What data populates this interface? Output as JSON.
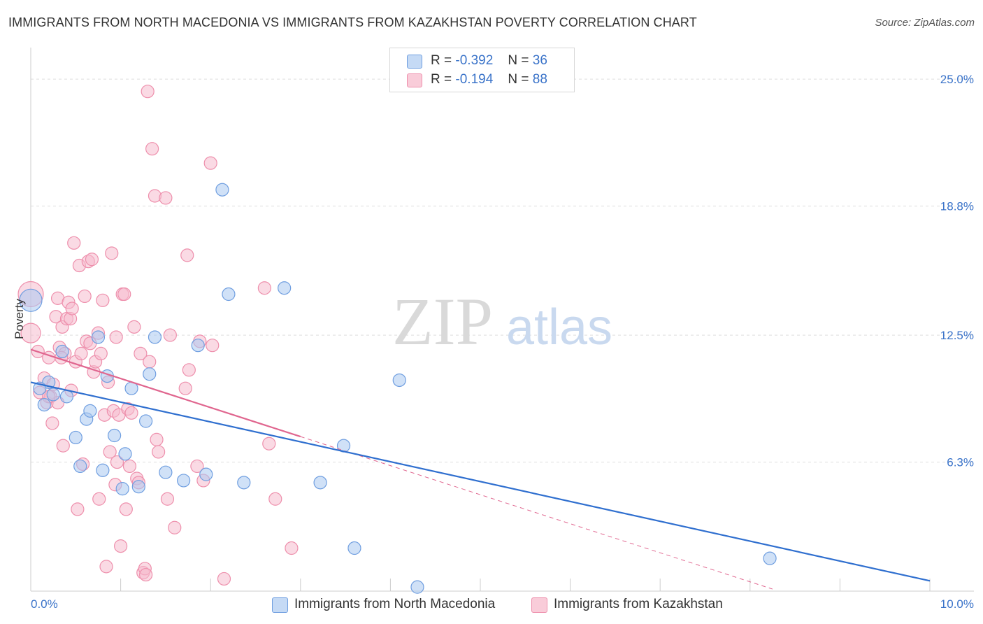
{
  "title": "IMMIGRANTS FROM NORTH MACEDONIA VS IMMIGRANTS FROM KAZAKHSTAN POVERTY CORRELATION CHART",
  "source": "Source: ZipAtlas.com",
  "colors": {
    "blue_fill": "#a9c8f0",
    "blue_stroke": "#6f9ee0",
    "blue_line": "#2f6fcf",
    "pink_fill": "#f6bccd",
    "pink_stroke": "#ee8fac",
    "pink_line": "#e0668f",
    "axis_label": "#3a73c9",
    "grid": "#dddddd"
  },
  "legend": {
    "r_label": "R =",
    "n_label": "N =",
    "series1": {
      "r": "-0.392",
      "n": "36"
    },
    "series2": {
      "r": "-0.194",
      "n": "88"
    }
  },
  "watermark": {
    "zip": "ZIP",
    "atlas": "atlas"
  },
  "chart_data": {
    "type": "scatter",
    "title": "IMMIGRANTS FROM NORTH MACEDONIA VS IMMIGRANTS FROM KAZAKHSTAN POVERTY CORRELATION CHART",
    "xlabel": "",
    "ylabel": "Poverty",
    "xlim": [
      0,
      10
    ],
    "ylim": [
      0,
      26.2
    ],
    "x_tick_labels": [
      "0.0%",
      "10.0%"
    ],
    "y_ticks": [
      6.3,
      12.5,
      18.8,
      25.0
    ],
    "y_tick_labels": [
      "6.3%",
      "12.5%",
      "18.8%",
      "25.0%"
    ],
    "series": [
      {
        "name": "Immigrants from North Macedonia",
        "color": "blue",
        "trend": {
          "x": [
            0,
            10
          ],
          "y": [
            10.2,
            0.5
          ],
          "solid_to": 10
        },
        "points": [
          [
            0.0,
            14.2,
            16
          ],
          [
            0.2,
            10.2,
            9
          ],
          [
            0.25,
            9.6,
            9
          ],
          [
            0.15,
            9.1,
            9
          ],
          [
            0.1,
            9.9,
            9
          ],
          [
            0.35,
            11.7,
            9
          ],
          [
            0.4,
            9.5,
            9
          ],
          [
            0.5,
            7.5,
            9
          ],
          [
            0.55,
            6.1,
            9
          ],
          [
            0.62,
            8.4,
            9
          ],
          [
            0.66,
            8.8,
            9
          ],
          [
            0.75,
            12.4,
            9
          ],
          [
            0.8,
            5.9,
            9
          ],
          [
            0.85,
            10.5,
            9
          ],
          [
            0.93,
            7.6,
            9
          ],
          [
            1.02,
            5.0,
            9
          ],
          [
            1.05,
            6.7,
            9
          ],
          [
            1.12,
            9.9,
            9
          ],
          [
            1.2,
            5.1,
            9
          ],
          [
            1.28,
            8.3,
            9
          ],
          [
            1.32,
            10.6,
            9
          ],
          [
            1.38,
            12.4,
            9
          ],
          [
            1.5,
            5.8,
            9
          ],
          [
            1.7,
            5.4,
            9
          ],
          [
            1.86,
            12.0,
            9
          ],
          [
            1.95,
            5.7,
            9
          ],
          [
            2.13,
            19.6,
            9
          ],
          [
            2.2,
            14.5,
            9
          ],
          [
            2.37,
            5.3,
            9
          ],
          [
            2.82,
            14.8,
            9
          ],
          [
            3.22,
            5.3,
            9
          ],
          [
            3.48,
            7.1,
            9
          ],
          [
            3.6,
            2.1,
            9
          ],
          [
            4.1,
            10.3,
            9
          ],
          [
            4.3,
            0.2,
            9
          ],
          [
            8.22,
            1.6,
            9
          ]
        ]
      },
      {
        "name": "Immigrants from Kazakhstan",
        "color": "pink",
        "trend": {
          "x": [
            0,
            8.25
          ],
          "y": [
            11.8,
            0.1
          ],
          "solid_to": 3.0
        },
        "points": [
          [
            0.0,
            14.5,
            18
          ],
          [
            0.0,
            12.6,
            14
          ],
          [
            0.08,
            11.7,
            9
          ],
          [
            0.1,
            9.7,
            9
          ],
          [
            0.15,
            10.4,
            9
          ],
          [
            0.18,
            9.2,
            9
          ],
          [
            0.2,
            11.4,
            9
          ],
          [
            0.22,
            9.5,
            9
          ],
          [
            0.25,
            10.1,
            9
          ],
          [
            0.24,
            8.2,
            9
          ],
          [
            0.28,
            13.4,
            9
          ],
          [
            0.3,
            14.3,
            9
          ],
          [
            0.32,
            11.9,
            9
          ],
          [
            0.35,
            12.9,
            9
          ],
          [
            0.36,
            7.1,
            9
          ],
          [
            0.38,
            11.6,
            9
          ],
          [
            0.4,
            13.3,
            9
          ],
          [
            0.42,
            14.1,
            9
          ],
          [
            0.44,
            13.3,
            9
          ],
          [
            0.46,
            13.8,
            9
          ],
          [
            0.48,
            17.0,
            9
          ],
          [
            0.5,
            11.2,
            9
          ],
          [
            0.52,
            4.0,
            9
          ],
          [
            0.54,
            15.9,
            9
          ],
          [
            0.56,
            11.6,
            9
          ],
          [
            0.58,
            6.2,
            9
          ],
          [
            0.6,
            14.4,
            9
          ],
          [
            0.62,
            12.2,
            9
          ],
          [
            0.64,
            16.1,
            9
          ],
          [
            0.66,
            12.1,
            9
          ],
          [
            0.68,
            16.2,
            9
          ],
          [
            0.7,
            10.7,
            9
          ],
          [
            0.72,
            11.2,
            9
          ],
          [
            0.75,
            12.6,
            9
          ],
          [
            0.76,
            4.5,
            9
          ],
          [
            0.78,
            11.6,
            9
          ],
          [
            0.8,
            14.2,
            9
          ],
          [
            0.82,
            8.6,
            9
          ],
          [
            0.84,
            1.2,
            9
          ],
          [
            0.86,
            10.2,
            9
          ],
          [
            0.88,
            6.8,
            9
          ],
          [
            0.9,
            16.5,
            9
          ],
          [
            0.92,
            8.8,
            9
          ],
          [
            0.94,
            5.2,
            9
          ],
          [
            0.96,
            6.3,
            9
          ],
          [
            0.98,
            8.6,
            9
          ],
          [
            1.0,
            2.2,
            9
          ],
          [
            1.02,
            14.5,
            9
          ],
          [
            1.04,
            14.5,
            9
          ],
          [
            1.06,
            4.0,
            9
          ],
          [
            1.08,
            8.9,
            9
          ],
          [
            1.1,
            6.1,
            9
          ],
          [
            1.12,
            8.7,
            9
          ],
          [
            1.15,
            12.9,
            9
          ],
          [
            1.18,
            5.5,
            9
          ],
          [
            1.2,
            5.3,
            9
          ],
          [
            1.22,
            11.6,
            9
          ],
          [
            1.25,
            0.9,
            9
          ],
          [
            1.27,
            1.1,
            9
          ],
          [
            1.3,
            24.4,
            9
          ],
          [
            1.32,
            11.2,
            9
          ],
          [
            1.35,
            21.6,
            9
          ],
          [
            1.38,
            19.3,
            9
          ],
          [
            1.4,
            7.4,
            9
          ],
          [
            1.42,
            6.8,
            9
          ],
          [
            1.5,
            19.2,
            9
          ],
          [
            1.52,
            4.5,
            9
          ],
          [
            1.55,
            12.5,
            9
          ],
          [
            1.6,
            3.1,
            9
          ],
          [
            1.72,
            9.9,
            9
          ],
          [
            1.74,
            16.4,
            9
          ],
          [
            1.76,
            10.8,
            9
          ],
          [
            1.85,
            6.1,
            9
          ],
          [
            1.88,
            12.2,
            9
          ],
          [
            1.92,
            5.4,
            9
          ],
          [
            2.0,
            20.9,
            9
          ],
          [
            2.02,
            12.0,
            9
          ],
          [
            2.15,
            0.6,
            9
          ],
          [
            2.6,
            14.8,
            9
          ],
          [
            2.65,
            7.2,
            9
          ],
          [
            2.72,
            4.5,
            9
          ],
          [
            2.9,
            2.1,
            9
          ],
          [
            1.28,
            0.8,
            9
          ],
          [
            0.95,
            12.4,
            9
          ],
          [
            0.45,
            9.8,
            9
          ],
          [
            0.3,
            9.2,
            9
          ],
          [
            0.2,
            9.5,
            9
          ],
          [
            0.34,
            11.4,
            9
          ]
        ]
      }
    ]
  },
  "bottom_legend": {
    "item1": "Immigrants from North Macedonia",
    "item2": "Immigrants from Kazakhstan"
  }
}
